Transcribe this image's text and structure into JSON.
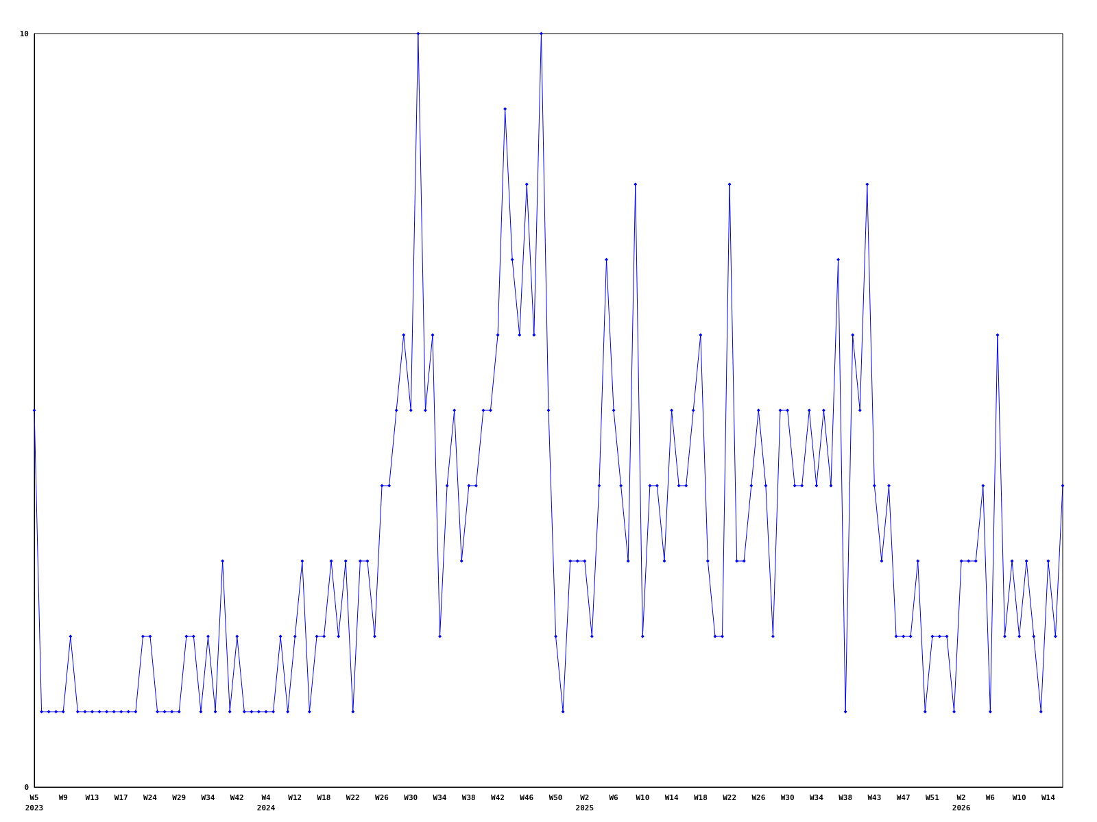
{
  "chart_data": {
    "type": "line",
    "categories": [
      "W5\n2023",
      null,
      null,
      null,
      "W9",
      null,
      null,
      null,
      "W13",
      null,
      null,
      null,
      "W17",
      null,
      null,
      null,
      "W24",
      null,
      null,
      null,
      "W29",
      null,
      null,
      null,
      "W34",
      null,
      null,
      null,
      "W42",
      null,
      null,
      null,
      "W4\n2024",
      null,
      null,
      null,
      "W12",
      null,
      null,
      null,
      "W18",
      null,
      null,
      null,
      "W22",
      null,
      null,
      null,
      "W26",
      null,
      null,
      null,
      "W30",
      null,
      null,
      null,
      "W34",
      null,
      null,
      null,
      "W38",
      null,
      null,
      null,
      "W42",
      null,
      null,
      null,
      "W46",
      null,
      null,
      null,
      "W50",
      null,
      null,
      null,
      "W2\n2025",
      null,
      null,
      null,
      "W6",
      null,
      null,
      null,
      "W10",
      null,
      null,
      null,
      "W14",
      null,
      null,
      null,
      "W18",
      null,
      null,
      null,
      "W22",
      null,
      null,
      null,
      "W26",
      null,
      null,
      null,
      "W30",
      null,
      null,
      null,
      "W34",
      null,
      null,
      null,
      "W38",
      null,
      null,
      null,
      "W43",
      null,
      null,
      null,
      "W47",
      null,
      null,
      null,
      "W51",
      null,
      null,
      null,
      "W2\n2026",
      null,
      null,
      null,
      "W6",
      null,
      null,
      null,
      "W10",
      null,
      null,
      null,
      "W14",
      null,
      null
    ],
    "values": [
      5,
      1,
      1,
      1,
      1,
      2,
      1,
      1,
      1,
      1,
      1,
      1,
      1,
      1,
      1,
      2,
      2,
      1,
      1,
      1,
      1,
      2,
      2,
      1,
      2,
      1,
      3,
      1,
      2,
      1,
      1,
      1,
      1,
      1,
      2,
      1,
      2,
      3,
      1,
      2,
      2,
      3,
      2,
      3,
      1,
      3,
      3,
      2,
      4,
      4,
      5,
      6,
      5,
      10,
      5,
      6,
      2,
      4,
      5,
      3,
      4,
      4,
      5,
      5,
      6,
      9,
      7,
      6,
      8,
      6,
      10,
      5,
      2,
      1,
      3,
      3,
      3,
      2,
      4,
      7,
      5,
      4,
      3,
      8,
      2,
      4,
      4,
      3,
      5,
      4,
      4,
      5,
      6,
      3,
      2,
      2,
      8,
      3,
      3,
      4,
      5,
      4,
      2,
      5,
      5,
      4,
      4,
      5,
      4,
      5,
      4,
      7,
      1,
      6,
      5,
      8,
      4,
      3,
      4,
      2,
      2,
      2,
      3,
      1,
      2,
      2,
      2,
      1,
      3,
      3,
      3,
      4,
      1,
      6,
      2,
      3,
      2,
      3,
      2,
      1,
      3,
      2,
      4
    ],
    "color": "#0000ff",
    "ylim": [
      0,
      10
    ],
    "yticks": [
      0,
      10
    ],
    "marker": "diamond",
    "line_style": "solid"
  }
}
